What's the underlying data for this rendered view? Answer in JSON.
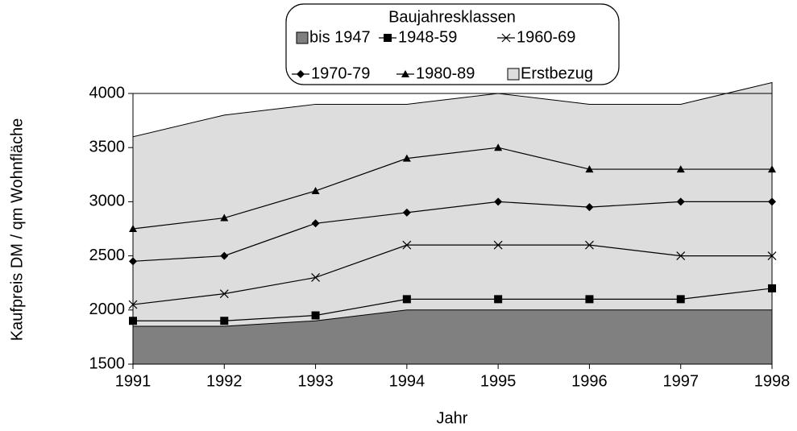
{
  "chart_data": {
    "type": "line",
    "x_label": "Jahr",
    "y_label": "Kaufpreis DM / qm Wohnfläche",
    "legend_title": "Baujahresklassen",
    "legend": "top",
    "x": [
      1991,
      1992,
      1993,
      1994,
      1995,
      1996,
      1997,
      1998
    ],
    "xlim": [
      1991,
      1998
    ],
    "xticks": [
      1991,
      1992,
      1993,
      1994,
      1995,
      1996,
      1997,
      1998
    ],
    "ylim": [
      1500,
      4000
    ],
    "yticks": [
      1500,
      2000,
      2500,
      3000,
      3500,
      4000
    ],
    "series": [
      {
        "name": "bis 1947",
        "kind": "area",
        "color": "#808080",
        "values": [
          1850,
          1850,
          1900,
          2000,
          2000,
          2000,
          2000,
          2000
        ]
      },
      {
        "name": "1948-59",
        "kind": "line",
        "marker": "square",
        "color": "#000000",
        "values": [
          1900,
          1900,
          1950,
          2100,
          2100,
          2100,
          2100,
          2200
        ]
      },
      {
        "name": "1960-69",
        "kind": "line",
        "marker": "star",
        "color": "#000000",
        "values": [
          2050,
          2150,
          2300,
          2600,
          2600,
          2600,
          2500,
          2500
        ]
      },
      {
        "name": "1970-79",
        "kind": "line",
        "marker": "diamond",
        "color": "#000000",
        "values": [
          2450,
          2500,
          2800,
          2900,
          3000,
          2950,
          3000,
          3000
        ]
      },
      {
        "name": "1980-89",
        "kind": "line",
        "marker": "triangle",
        "color": "#000000",
        "values": [
          2750,
          2850,
          3100,
          3400,
          3500,
          3300,
          3300,
          3300
        ]
      },
      {
        "name": "Erstbezug",
        "kind": "area",
        "color": "#dddddd",
        "values": [
          3600,
          3800,
          3900,
          3900,
          4000,
          3900,
          3900,
          4100
        ]
      }
    ]
  }
}
